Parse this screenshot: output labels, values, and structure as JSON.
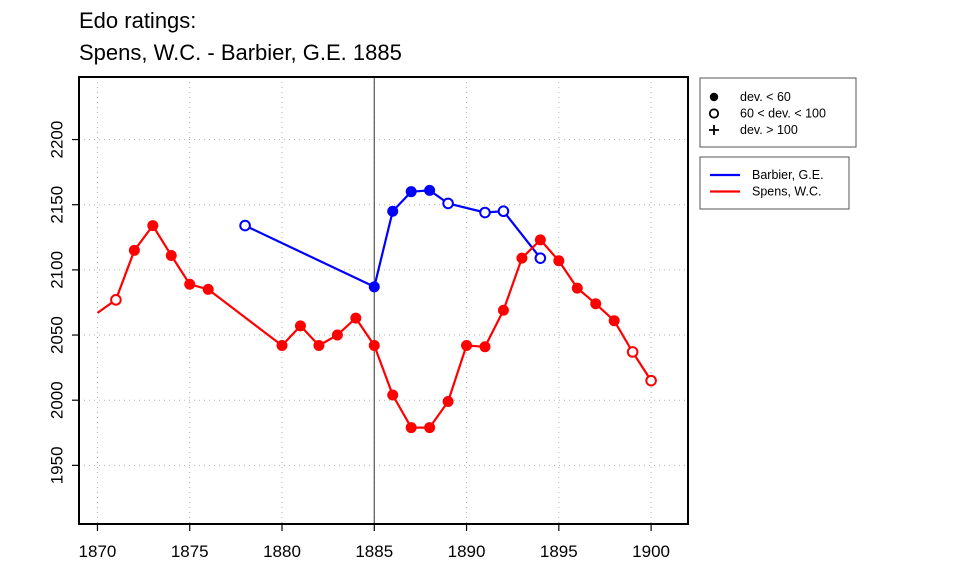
{
  "title_lines": [
    "Edo ratings:",
    "Spens, W.C. - Barbier, G.E. 1885"
  ],
  "chart_data": {
    "type": "line",
    "xlim": [
      1869,
      1902
    ],
    "ylim": [
      1905,
      2248
    ],
    "x_ticks": [
      1870,
      1875,
      1880,
      1885,
      1890,
      1895,
      1900
    ],
    "y_ticks": [
      1950,
      2000,
      2050,
      2100,
      2150,
      2200
    ],
    "grid": true,
    "vline_x": 1885,
    "deviation_legend": [
      {
        "symbol": "filled-circle",
        "label": "dev. < 60"
      },
      {
        "symbol": "open-circle",
        "label": "60 < dev. < 100"
      },
      {
        "symbol": "plus",
        "label": "dev. > 100"
      }
    ],
    "series": [
      {
        "name": "Barbier, G.E.",
        "color": "#0000ff",
        "points": [
          {
            "x": 1878,
            "y": 2134,
            "marker": "open-circle"
          },
          {
            "x": 1885,
            "y": 2087,
            "marker": "filled-circle"
          },
          {
            "x": 1886,
            "y": 2145,
            "marker": "filled-circle"
          },
          {
            "x": 1887,
            "y": 2160,
            "marker": "filled-circle"
          },
          {
            "x": 1888,
            "y": 2161,
            "marker": "filled-circle"
          },
          {
            "x": 1889,
            "y": 2151,
            "marker": "open-circle"
          },
          {
            "x": 1891,
            "y": 2144,
            "marker": "open-circle"
          },
          {
            "x": 1892,
            "y": 2145,
            "marker": "open-circle"
          },
          {
            "x": 1894,
            "y": 2109,
            "marker": "open-circle"
          }
        ]
      },
      {
        "name": "Spens, W.C.",
        "color": "#ff0000",
        "points": [
          {
            "x": 1870,
            "y": 2067,
            "marker": "none"
          },
          {
            "x": 1871,
            "y": 2077,
            "marker": "open-circle"
          },
          {
            "x": 1872,
            "y": 2115,
            "marker": "filled-circle"
          },
          {
            "x": 1873,
            "y": 2134,
            "marker": "filled-circle"
          },
          {
            "x": 1874,
            "y": 2111,
            "marker": "filled-circle"
          },
          {
            "x": 1875,
            "y": 2089,
            "marker": "filled-circle"
          },
          {
            "x": 1876,
            "y": 2085,
            "marker": "filled-circle"
          },
          {
            "x": 1880,
            "y": 2042,
            "marker": "filled-circle"
          },
          {
            "x": 1881,
            "y": 2057,
            "marker": "filled-circle"
          },
          {
            "x": 1882,
            "y": 2042,
            "marker": "filled-circle"
          },
          {
            "x": 1883,
            "y": 2050,
            "marker": "filled-circle"
          },
          {
            "x": 1884,
            "y": 2063,
            "marker": "filled-circle"
          },
          {
            "x": 1885,
            "y": 2042,
            "marker": "filled-circle"
          },
          {
            "x": 1886,
            "y": 2004,
            "marker": "filled-circle"
          },
          {
            "x": 1887,
            "y": 1979,
            "marker": "filled-circle"
          },
          {
            "x": 1888,
            "y": 1979,
            "marker": "filled-circle"
          },
          {
            "x": 1889,
            "y": 1999,
            "marker": "filled-circle"
          },
          {
            "x": 1890,
            "y": 2042,
            "marker": "filled-circle"
          },
          {
            "x": 1891,
            "y": 2041,
            "marker": "filled-circle"
          },
          {
            "x": 1892,
            "y": 2069,
            "marker": "filled-circle"
          },
          {
            "x": 1893,
            "y": 2109,
            "marker": "filled-circle"
          },
          {
            "x": 1894,
            "y": 2123,
            "marker": "filled-circle"
          },
          {
            "x": 1895,
            "y": 2107,
            "marker": "filled-circle"
          },
          {
            "x": 1896,
            "y": 2086,
            "marker": "filled-circle"
          },
          {
            "x": 1897,
            "y": 2074,
            "marker": "filled-circle"
          },
          {
            "x": 1898,
            "y": 2061,
            "marker": "filled-circle"
          },
          {
            "x": 1899,
            "y": 2037,
            "marker": "open-circle"
          },
          {
            "x": 1900,
            "y": 2015,
            "marker": "open-circle"
          }
        ]
      }
    ]
  }
}
